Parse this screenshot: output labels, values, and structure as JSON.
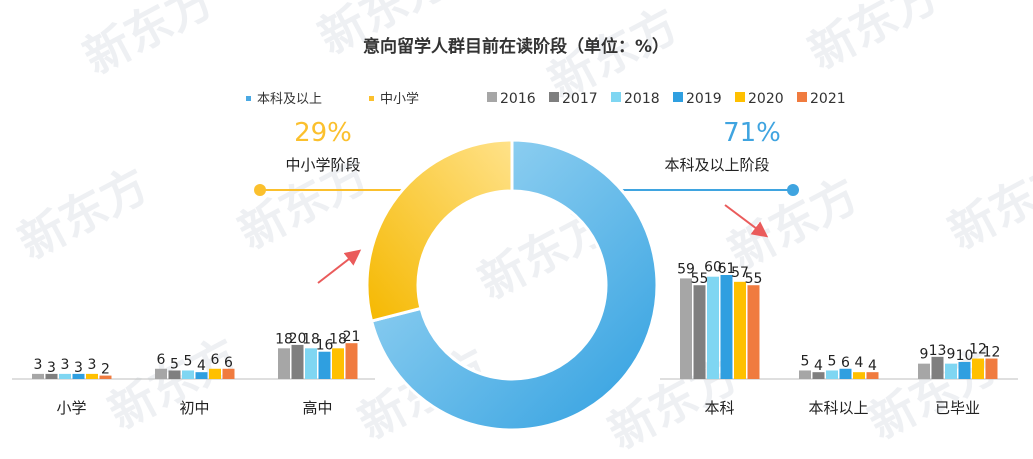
{
  "title": "意向留学人群目前在读阶段（单位：%）",
  "donut_legend": [
    {
      "label": "本科及以上",
      "color": "#4ba9e3"
    },
    {
      "label": "中小学",
      "color": "#fbc02d"
    }
  ],
  "year_legend": [
    {
      "label": "2016",
      "color": "#a6a6a6"
    },
    {
      "label": "2017",
      "color": "#7f7f7f"
    },
    {
      "label": "2018",
      "color": "#7fd6f2"
    },
    {
      "label": "2019",
      "color": "#2f9fe0"
    },
    {
      "label": "2020",
      "color": "#ffc000"
    },
    {
      "label": "2021",
      "color": "#f07b3f"
    }
  ],
  "left_callout": {
    "percent": "29%",
    "label": "中小学阶段",
    "color": "#fbc02d"
  },
  "right_callout": {
    "percent": "71%",
    "label": "本科及以上阶段",
    "color": "#4ba9e3"
  },
  "watermark": "新东方",
  "chart_data": [
    {
      "type": "pie",
      "variant": "donut",
      "title": "意向留学人群目前在读阶段（单位：%）",
      "slices": [
        {
          "label": "本科及以上",
          "value": 71,
          "color": "#4ba9e3"
        },
        {
          "label": "中小学",
          "value": 29,
          "color": "#fbc02d"
        }
      ]
    },
    {
      "type": "bar",
      "group": "left",
      "categories": [
        "小学",
        "初中",
        "高中"
      ],
      "series": [
        {
          "name": "2016",
          "values": [
            3,
            6,
            18
          ]
        },
        {
          "name": "2017",
          "values": [
            3,
            5,
            20
          ]
        },
        {
          "name": "2018",
          "values": [
            3,
            5,
            18
          ]
        },
        {
          "name": "2019",
          "values": [
            3,
            4,
            16
          ]
        },
        {
          "name": "2020",
          "values": [
            3,
            6,
            18
          ]
        },
        {
          "name": "2021",
          "values": [
            2,
            6,
            21
          ]
        }
      ],
      "ylim": [
        0,
        61
      ],
      "grid": false
    },
    {
      "type": "bar",
      "group": "right",
      "categories": [
        "本科",
        "本科以上",
        "已毕业"
      ],
      "series": [
        {
          "name": "2016",
          "values": [
            59,
            5,
            9
          ]
        },
        {
          "name": "2017",
          "values": [
            55,
            4,
            13
          ]
        },
        {
          "name": "2018",
          "values": [
            60,
            5,
            9
          ]
        },
        {
          "name": "2019",
          "values": [
            61,
            6,
            10
          ]
        },
        {
          "name": "2020",
          "values": [
            57,
            4,
            12
          ]
        },
        {
          "name": "2021",
          "values": [
            55,
            4,
            12
          ]
        }
      ],
      "ylim": [
        0,
        61
      ],
      "grid": false
    }
  ]
}
